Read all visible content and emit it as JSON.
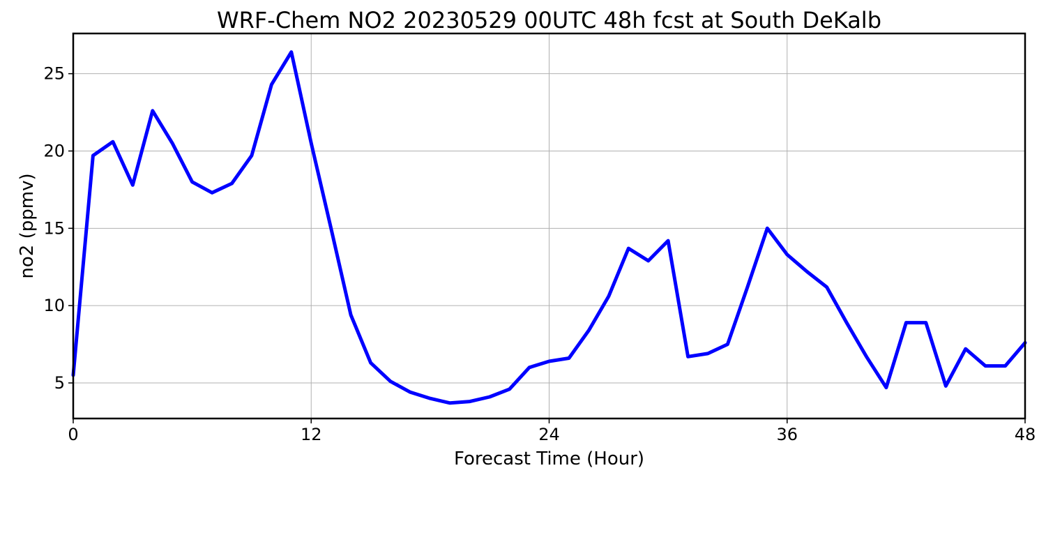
{
  "chart_data": {
    "type": "line",
    "title": "WRF-Chem NO2  20230529 00UTC 48h fcst at South DeKalb",
    "xlabel": "Forecast Time (Hour)",
    "ylabel": "no2  (ppmv)",
    "xlim": [
      0,
      48
    ],
    "ylim": [
      2.7,
      27.6
    ],
    "xticks": [
      0,
      12,
      24,
      36,
      48
    ],
    "xtick_labels": [
      "0",
      "12",
      "24",
      "36",
      "48"
    ],
    "yticks": [
      5,
      10,
      15,
      20,
      25
    ],
    "ytick_labels": [
      "5",
      "10",
      "15",
      "20",
      "25"
    ],
    "grid": true,
    "line_color": "#0000ff",
    "series": [
      {
        "x": [
          0,
          1,
          2,
          3,
          4,
          5,
          6,
          7,
          8,
          9,
          10,
          11,
          12,
          13,
          14,
          15,
          16,
          17,
          18,
          19,
          20,
          21,
          22,
          23,
          24,
          25,
          26,
          27,
          28,
          29,
          30,
          31,
          32,
          33,
          34,
          35,
          36,
          37,
          38,
          39,
          40,
          41,
          42,
          43,
          44,
          45,
          46,
          47,
          48
        ],
        "values": [
          5.5,
          19.7,
          20.6,
          17.8,
          22.6,
          20.5,
          18.0,
          17.3,
          17.9,
          19.7,
          24.3,
          26.4,
          20.5,
          15.0,
          9.4,
          6.3,
          5.1,
          4.4,
          4.0,
          3.7,
          3.8,
          4.1,
          4.6,
          6.0,
          6.4,
          6.6,
          8.4,
          10.6,
          13.7,
          12.9,
          14.2,
          6.7,
          6.9,
          7.5,
          11.2,
          15.0,
          13.3,
          12.2,
          11.2,
          8.9,
          6.7,
          4.7,
          8.9,
          8.9,
          4.8,
          7.2,
          6.1,
          6.1,
          7.6
        ]
      }
    ]
  }
}
